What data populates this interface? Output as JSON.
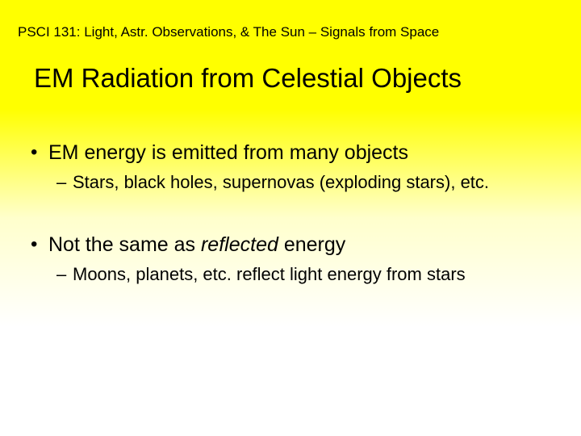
{
  "header": "PSCI 131: Light, Astr. Observations, & The Sun – Signals from Space",
  "title": "EM Radiation from Celestial Objects",
  "bullets": {
    "b1_text": "EM energy is emitted from many objects",
    "b1_sub": "Stars, black holes, supernovas (exploding stars), etc.",
    "b2_prefix": "Not the same as ",
    "b2_italic": "reflected",
    "b2_suffix": " energy",
    "b2_sub": "Moons, planets, etc. reflect light energy from stars"
  },
  "colors": {
    "background_top": "#ffff00",
    "background_bottom": "#ffffff",
    "text": "#000000"
  },
  "fonts": {
    "header_size": 17,
    "title_size": 33,
    "bullet1_size": 25,
    "bullet2_size": 22,
    "family": "Arial"
  }
}
